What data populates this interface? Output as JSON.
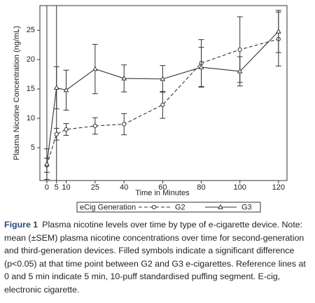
{
  "chart_data": {
    "type": "line",
    "x_label": "Time in Minutes",
    "y_label": "Plasma Nicotine Concentration (ng/mL)",
    "x": [
      0,
      5,
      10,
      25,
      40,
      60,
      80,
      100,
      120
    ],
    "series": [
      {
        "name": "G2",
        "color": "#333333",
        "dash": true,
        "marker": "circle",
        "values": [
          2.0,
          7.3,
          8.1,
          8.7,
          9.0,
          12.3,
          19.4,
          21.7,
          23.5
        ],
        "errors": [
          1.2,
          1.0,
          1.0,
          1.4,
          1.8,
          2.3,
          4.0,
          5.6,
          4.6
        ]
      },
      {
        "name": "G3",
        "color": "#333333",
        "dash": false,
        "marker": "triangle",
        "values": [
          2.2,
          15.2,
          14.8,
          18.4,
          16.8,
          16.7,
          18.7,
          18.0,
          24.8
        ],
        "errors": [
          2.6,
          3.6,
          3.4,
          4.2,
          2.3,
          2.3,
          3.4,
          2.5,
          3.6
        ]
      }
    ],
    "ref_lines": [
      0,
      5
    ],
    "xlim": [
      -3.6,
      124.4
    ],
    "ylim": [
      -0.6,
      29.2
    ],
    "xticks": [
      0,
      5,
      10,
      25,
      40,
      60,
      80,
      100,
      120
    ],
    "yticks": [
      5,
      10,
      15,
      20,
      25
    ],
    "legend_title": "eCig Generation",
    "legend": "bottom"
  },
  "caption": {
    "label": "Figure 1",
    "text": "Plasma nicotine levels over time by type of e-cigarette device. Note: mean (±SEM) plasma nicotine concentrations over time for second-generation and third-generation devices. Filled symbols indicate a significant difference (p<0.05) at that time point between G2 and G3 e-cigarettes. Reference lines at 0 and 5 min indicate 5 min, 10-puff standardised puffing segment. E-cig, electronic cigarette."
  }
}
